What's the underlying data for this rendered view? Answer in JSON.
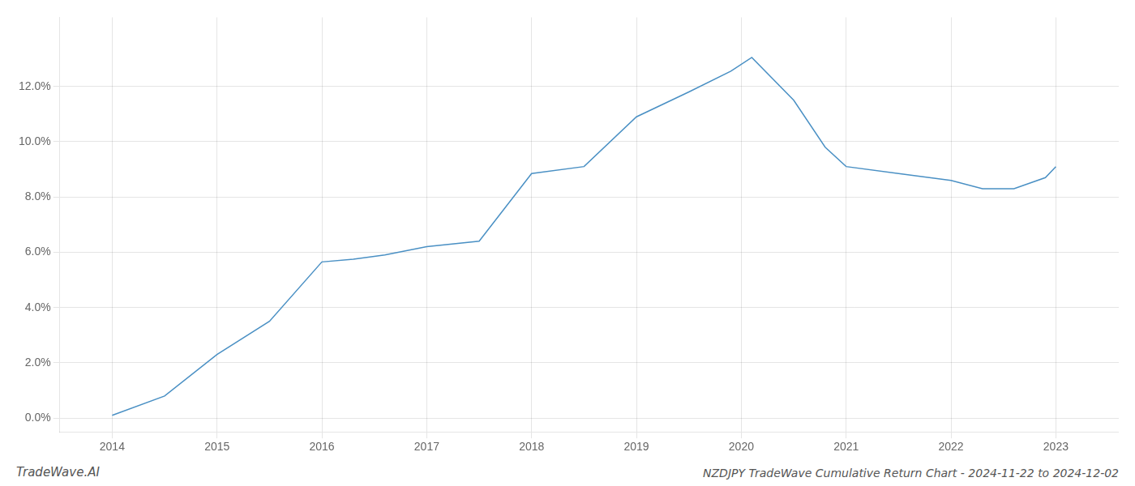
{
  "chart_data": {
    "type": "line",
    "title": "NZDJPY TradeWave Cumulative Return Chart - 2024-11-22 to 2024-12-02",
    "annotations": [
      "TradeWave.AI"
    ],
    "x": [
      2014.0,
      2014.5,
      2015.0,
      2015.5,
      2016.0,
      2016.3,
      2016.6,
      2017.0,
      2017.5,
      2018.0,
      2018.5,
      2019.0,
      2019.5,
      2019.9,
      2020.1,
      2020.5,
      2020.8,
      2021.0,
      2021.5,
      2022.0,
      2022.3,
      2022.6,
      2022.9,
      2023.0
    ],
    "values": [
      0.1,
      0.8,
      2.3,
      3.5,
      5.65,
      5.75,
      5.9,
      6.2,
      6.4,
      8.85,
      9.1,
      10.9,
      11.8,
      12.55,
      13.05,
      11.5,
      9.8,
      9.1,
      8.85,
      8.6,
      8.3,
      8.3,
      8.7,
      9.1
    ],
    "color": "#4a90c4",
    "xlim": [
      2013.5,
      2023.6
    ],
    "xticks": [
      2014,
      2015,
      2016,
      2017,
      2018,
      2019,
      2020,
      2021,
      2022,
      2023
    ],
    "ylim": [
      -0.5,
      14.5
    ],
    "yticks": [
      {
        "value": 0.0,
        "label": "0.0%"
      },
      {
        "value": 2.0,
        "label": "2.0%"
      },
      {
        "value": 4.0,
        "label": "4.0%"
      },
      {
        "value": 6.0,
        "label": "6.0%"
      },
      {
        "value": 8.0,
        "label": "8.0%"
      },
      {
        "value": 10.0,
        "label": "10.0%"
      },
      {
        "value": 12.0,
        "label": "12.0%"
      }
    ],
    "grid": true
  }
}
